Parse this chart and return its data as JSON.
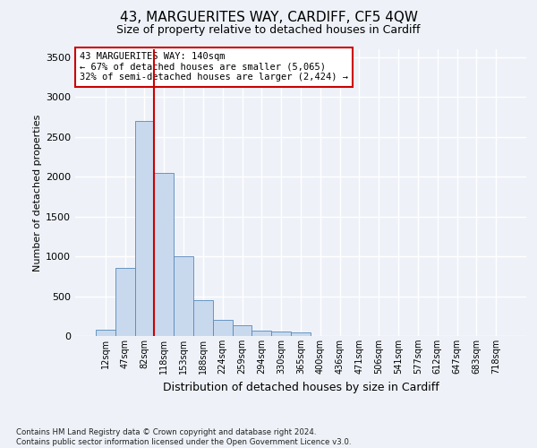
{
  "title": "43, MARGUERITES WAY, CARDIFF, CF5 4QW",
  "subtitle": "Size of property relative to detached houses in Cardiff",
  "xlabel": "Distribution of detached houses by size in Cardiff",
  "ylabel": "Number of detached properties",
  "categories": [
    "12sqm",
    "47sqm",
    "82sqm",
    "118sqm",
    "153sqm",
    "188sqm",
    "224sqm",
    "259sqm",
    "294sqm",
    "330sqm",
    "365sqm",
    "400sqm",
    "436sqm",
    "471sqm",
    "506sqm",
    "541sqm",
    "577sqm",
    "612sqm",
    "647sqm",
    "683sqm",
    "718sqm"
  ],
  "values": [
    80,
    850,
    2700,
    2050,
    1000,
    450,
    200,
    130,
    70,
    60,
    40,
    5,
    5,
    3,
    2,
    1,
    1,
    1,
    0,
    0,
    0
  ],
  "bar_color": "#c8d9ee",
  "bar_edge_color": "#5588bb",
  "vline_color": "#cc0000",
  "vline_x_index": 2.5,
  "ylim": [
    0,
    3600
  ],
  "yticks": [
    0,
    500,
    1000,
    1500,
    2000,
    2500,
    3000,
    3500
  ],
  "annotation_text": "43 MARGUERITES WAY: 140sqm\n← 67% of detached houses are smaller (5,065)\n32% of semi-detached houses are larger (2,424) →",
  "annotation_box_color": "white",
  "annotation_box_edge": "#cc0000",
  "footnote": "Contains HM Land Registry data © Crown copyright and database right 2024.\nContains public sector information licensed under the Open Government Licence v3.0.",
  "bg_color": "#eef2f8",
  "grid_color": "#d0d8e8",
  "title_fontsize": 11,
  "subtitle_fontsize": 9,
  "ylabel_fontsize": 8,
  "xlabel_fontsize": 9
}
